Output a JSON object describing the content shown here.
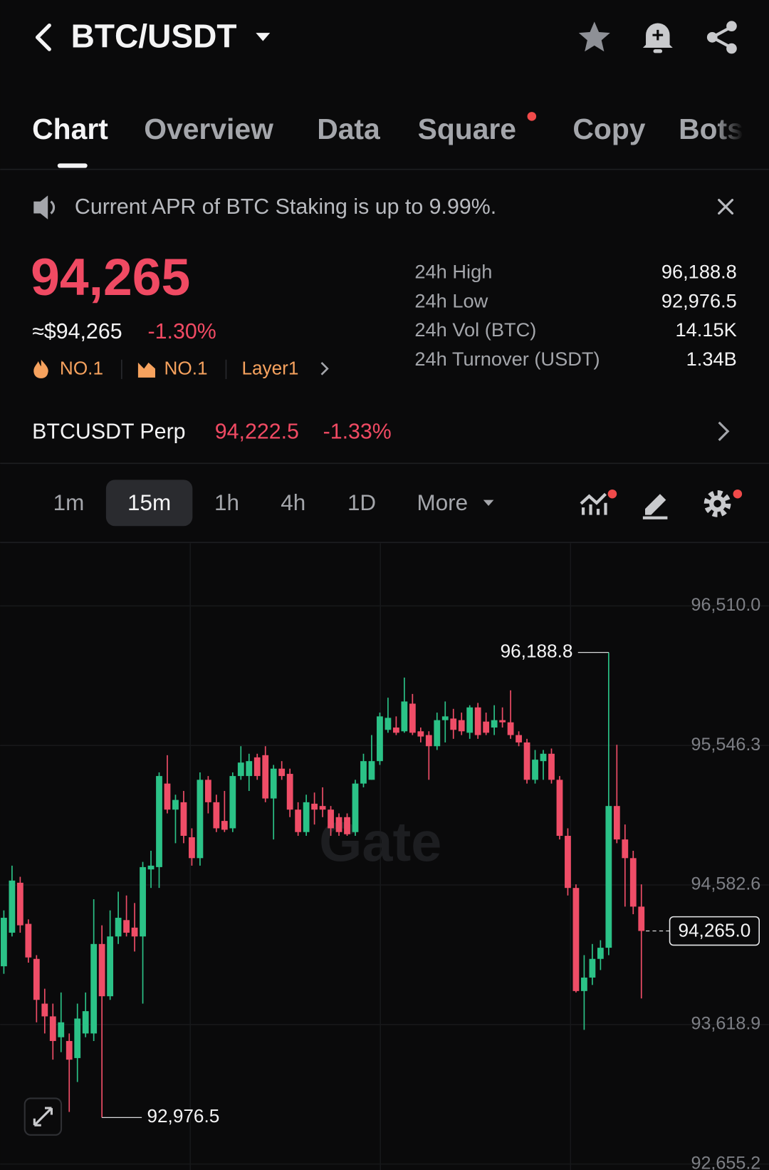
{
  "header": {
    "title": "BTC/USDT"
  },
  "tabs": [
    "Chart",
    "Overview",
    "Data",
    "Square",
    "Copy",
    "Bots"
  ],
  "banner": {
    "text": "Current APR of BTC Staking is up to 9.99%."
  },
  "ticker": {
    "price": "94,265",
    "usd_price": "≈$94,265",
    "change": "-1.30%",
    "tags": [
      "NO.1",
      "NO.1",
      "Layer1"
    ]
  },
  "stats": [
    {
      "label": "24h High",
      "value": "96,188.8"
    },
    {
      "label": "24h Low",
      "value": "92,976.5"
    },
    {
      "label": "24h Vol (BTC)",
      "value": "14.15K"
    },
    {
      "label": "24h Turnover (USDT)",
      "value": "1.34B"
    }
  ],
  "perp": {
    "name": "BTCUSDT Perp",
    "price": "94,222.5",
    "change": "-1.33%"
  },
  "timeframes": [
    "1m",
    "15m",
    "1h",
    "4h",
    "1D",
    "More"
  ],
  "chart_data": {
    "type": "candlestick",
    "watermark": "Gate",
    "up_color": "#2bc287",
    "down_color": "#ef4d67",
    "ylim": [
      92614,
      96943
    ],
    "yticks": [
      {
        "value": 96510,
        "label": "96,510.0"
      },
      {
        "value": 95546.3,
        "label": "95,546.3"
      },
      {
        "value": 94582.6,
        "label": "94,582.6"
      },
      {
        "value": 93618.9,
        "label": "93,618.9"
      },
      {
        "value": 92655.2,
        "label": "92,655.2"
      }
    ],
    "grid": true,
    "open": [
      94021,
      94253,
      94598,
      94314,
      94072,
      93763,
      93675,
      93531,
      93505,
      93387,
      93557,
      93557,
      94175,
      93814,
      94227,
      94340,
      94288,
      94227,
      94690,
      94706,
      95283,
      95103,
      95154,
      94912,
      94768,
      95309,
      95154,
      95025,
      94974,
      95335,
      95335,
      95464,
      95479,
      95180,
      95386,
      95350,
      95103,
      94948,
      95144,
      95128,
      95103,
      95051,
      95051,
      94948,
      95283,
      95309,
      95438,
      95654,
      95670,
      95644,
      95835,
      95644,
      95618,
      95541,
      95721,
      95732,
      95721,
      95634,
      95809,
      95711,
      95670,
      95721,
      95706,
      95618,
      95567,
      95309,
      95438,
      95489,
      95309,
      94922,
      94562,
      93850,
      93943,
      94072,
      94149,
      95128,
      94897,
      94768,
      94433
    ],
    "high": [
      94407,
      94716,
      94639,
      94345,
      94098,
      93866,
      93763,
      93840,
      93557,
      93763,
      93840,
      94484,
      94304,
      94407,
      94536,
      94510,
      94458,
      94742,
      94819,
      95360,
      95479,
      95206,
      95232,
      94974,
      95360,
      95335,
      95206,
      95232,
      95360,
      95541,
      95489,
      95489,
      95541,
      95412,
      95438,
      95386,
      95154,
      95206,
      95221,
      95257,
      95128,
      95077,
      95077,
      95309,
      95489,
      95618,
      95773,
      95876,
      95747,
      96015,
      95902,
      95670,
      95644,
      95773,
      95850,
      95799,
      95773,
      95824,
      95840,
      95773,
      95824,
      95809,
      95927,
      95644,
      95592,
      95515,
      95515,
      95525,
      95335,
      94974,
      94587,
      94098,
      94175,
      94201,
      96188.8,
      95551,
      95000,
      94819,
      94587
    ],
    "low": [
      93969,
      94227,
      94253,
      94046,
      93634,
      93557,
      93376,
      93428,
      93015,
      93222,
      93531,
      93505,
      92976.5,
      93789,
      94175,
      94227,
      94123,
      93763,
      94562,
      94562,
      95077,
      94871,
      94871,
      94716,
      94716,
      95077,
      94948,
      94948,
      94948,
      95309,
      95232,
      95309,
      95154,
      94897,
      95309,
      95051,
      94922,
      94922,
      95000,
      95051,
      94922,
      94922,
      94922,
      94922,
      95257,
      95309,
      95412,
      95634,
      95618,
      95634,
      95618,
      95567,
      95309,
      95515,
      95567,
      95592,
      95618,
      95592,
      95592,
      95618,
      95618,
      95670,
      95592,
      95541,
      95283,
      95283,
      95309,
      95283,
      94897,
      94510,
      93840,
      93582,
      93892,
      93995,
      94098,
      94871,
      94433,
      94381,
      93799
    ],
    "close": [
      94356,
      94613,
      94304,
      94082,
      93789,
      93675,
      93505,
      93634,
      93376,
      93660,
      93711,
      94175,
      93814,
      94227,
      94356,
      94253,
      94227,
      94706,
      94716,
      95335,
      95103,
      95170,
      94922,
      94768,
      95309,
      95154,
      94974,
      94964,
      95335,
      95428,
      95438,
      95335,
      95180,
      95386,
      95335,
      95103,
      94948,
      95154,
      95103,
      95103,
      94974,
      94948,
      94933,
      95283,
      95438,
      95438,
      95747,
      95737,
      95634,
      95850,
      95634,
      95608,
      95541,
      95721,
      95747,
      95654,
      95644,
      95809,
      95618,
      95634,
      95721,
      95706,
      95618,
      95567,
      95309,
      95448,
      95489,
      95309,
      94922,
      94562,
      93850,
      93943,
      94072,
      94149,
      95128,
      94897,
      94768,
      94433,
      94265
    ],
    "high_marker": {
      "value": 96188.8,
      "label": "96,188.8"
    },
    "low_marker": {
      "value": 92976.5,
      "label": "92,976.5"
    },
    "last_price": {
      "value": 94265,
      "label": "94,265.0"
    }
  }
}
